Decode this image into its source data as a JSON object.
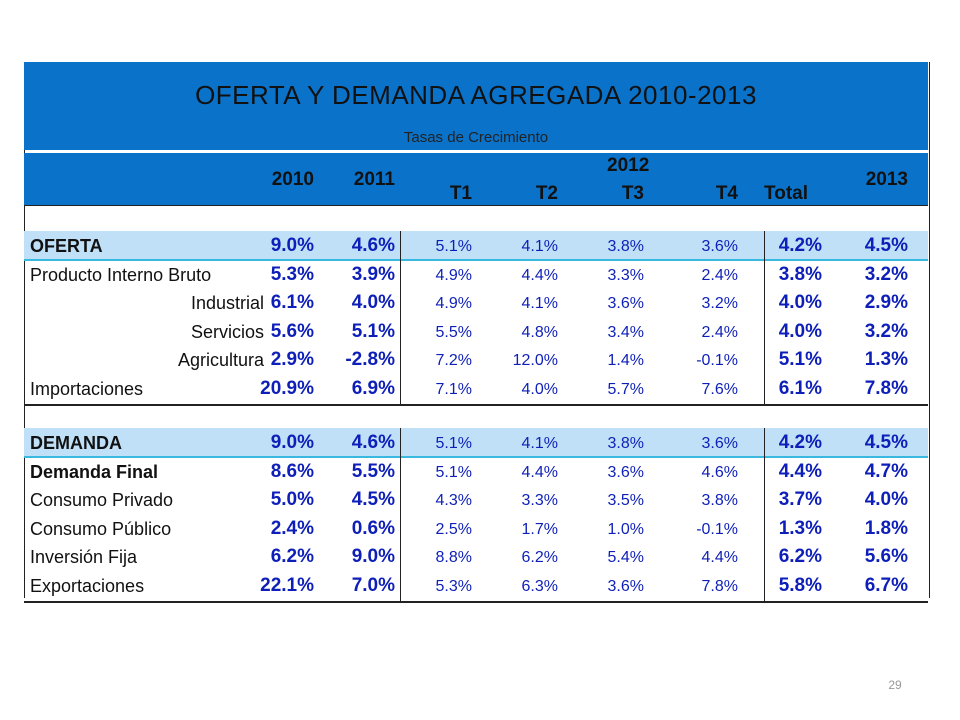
{
  "title": "OFERTA Y DEMANDA AGREGADA 2010-2013",
  "subtitle": "Tasas de Crecimiento",
  "header": {
    "y2010": "2010",
    "y2011": "2011",
    "y2012": "2012",
    "t1": "T1",
    "t2": "T2",
    "t3": "T3",
    "t4": "T4",
    "total": "Total",
    "y2013": "2013"
  },
  "page_number": "29",
  "chart_data": {
    "type": "table",
    "title": "OFERTA Y DEMANDA AGREGADA 2010-2013",
    "subtitle": "Tasas de Crecimiento",
    "columns": [
      "2010",
      "2011",
      "2012 T1",
      "2012 T2",
      "2012 T3",
      "2012 T4",
      "2012 Total",
      "2013"
    ],
    "sections": [
      {
        "name": "OFERTA",
        "values": [
          "9.0%",
          "4.6%",
          "5.1%",
          "4.1%",
          "3.8%",
          "3.6%",
          "4.2%",
          "4.5%"
        ],
        "rows": [
          {
            "label": "Producto Interno Bruto",
            "align": "left",
            "bold": false,
            "values": [
              "5.3%",
              "3.9%",
              "4.9%",
              "4.4%",
              "3.3%",
              "2.4%",
              "3.8%",
              "3.2%"
            ]
          },
          {
            "label": "Industrial",
            "align": "right",
            "bold": false,
            "values": [
              "6.1%",
              "4.0%",
              "4.9%",
              "4.1%",
              "3.6%",
              "3.2%",
              "4.0%",
              "2.9%"
            ]
          },
          {
            "label": "Servicios",
            "align": "right",
            "bold": false,
            "values": [
              "5.6%",
              "5.1%",
              "5.5%",
              "4.8%",
              "3.4%",
              "2.4%",
              "4.0%",
              "3.2%"
            ]
          },
          {
            "label": "Agricultura",
            "align": "right",
            "bold": false,
            "values": [
              "2.9%",
              "-2.8%",
              "7.2%",
              "12.0%",
              "1.4%",
              "-0.1%",
              "5.1%",
              "1.3%"
            ]
          },
          {
            "label": "Importaciones",
            "align": "left",
            "bold": false,
            "values": [
              "20.9%",
              "6.9%",
              "7.1%",
              "4.0%",
              "5.7%",
              "7.6%",
              "6.1%",
              "7.8%"
            ]
          }
        ]
      },
      {
        "name": "DEMANDA",
        "values": [
          "9.0%",
          "4.6%",
          "5.1%",
          "4.1%",
          "3.8%",
          "3.6%",
          "4.2%",
          "4.5%"
        ],
        "rows": [
          {
            "label": "Demanda Final",
            "align": "left",
            "bold": true,
            "values": [
              "8.6%",
              "5.5%",
              "5.1%",
              "4.4%",
              "3.6%",
              "4.6%",
              "4.4%",
              "4.7%"
            ]
          },
          {
            "label": "Consumo Privado",
            "align": "left",
            "bold": false,
            "values": [
              "5.0%",
              "4.5%",
              "4.3%",
              "3.3%",
              "3.5%",
              "3.8%",
              "3.7%",
              "4.0%"
            ]
          },
          {
            "label": "Consumo Público",
            "align": "left",
            "bold": false,
            "values": [
              "2.4%",
              "0.6%",
              "2.5%",
              "1.7%",
              "1.0%",
              "-0.1%",
              "1.3%",
              "1.8%"
            ]
          },
          {
            "label": "Inversión Fija",
            "align": "left",
            "bold": false,
            "values": [
              "6.2%",
              "9.0%",
              "8.8%",
              "6.2%",
              "5.4%",
              "4.4%",
              "6.2%",
              "5.6%"
            ]
          },
          {
            "label": "Exportaciones",
            "align": "left",
            "bold": false,
            "values": [
              "22.1%",
              "7.0%",
              "5.3%",
              "6.3%",
              "3.6%",
              "7.8%",
              "5.8%",
              "6.7%"
            ]
          }
        ]
      }
    ]
  }
}
